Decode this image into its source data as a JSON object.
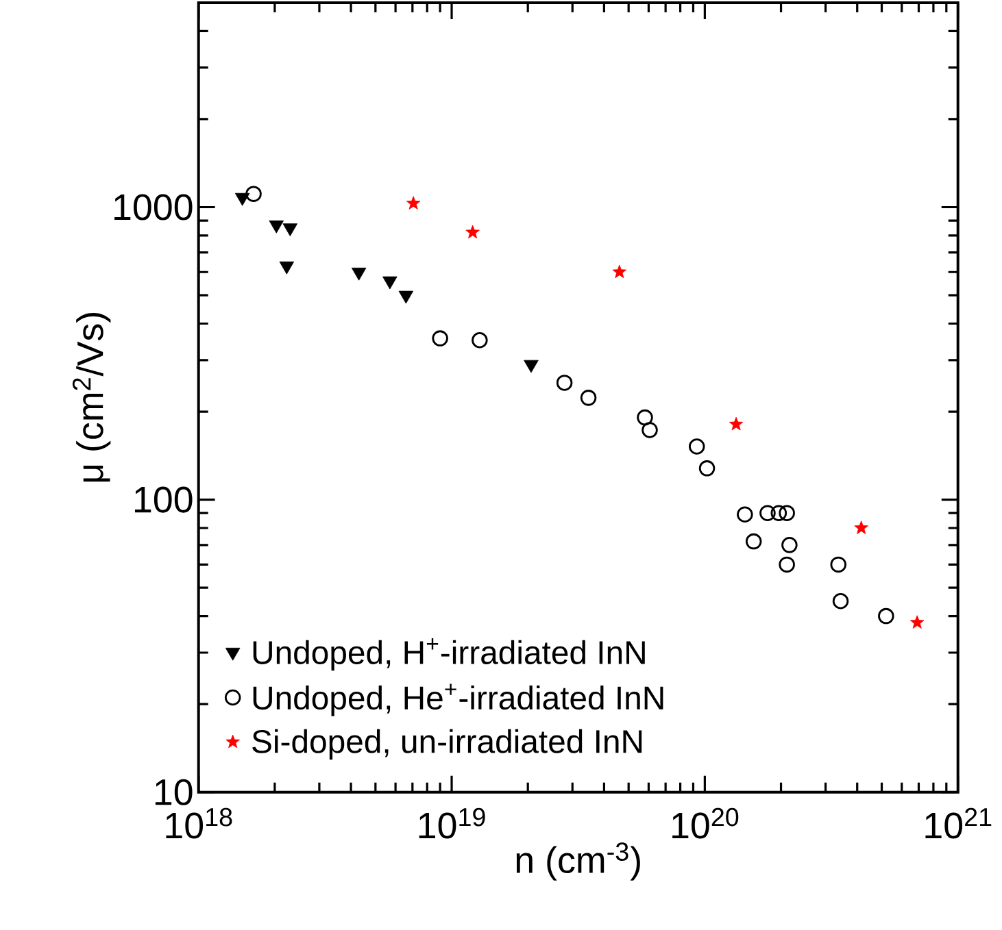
{
  "chart_data": {
    "type": "scatter",
    "xlabel": "n (cm$^{-3}$)",
    "ylabel": "μ (cm$^{2}$/Vs)",
    "log": "xy",
    "legend": "bottom left",
    "grid": false,
    "xlim": [
      1e+18,
      1e+21
    ],
    "ylim": [
      10,
      5000
    ],
    "xticks": [
      {
        "value": 1e+18,
        "label": "10$^{18}$"
      },
      {
        "value": 1e+19,
        "label": "10$^{19}$"
      },
      {
        "value": 1e+20,
        "label": "10$^{20}$"
      },
      {
        "value": 1e+21,
        "label": "10$^{21}$"
      }
    ],
    "yticks": [
      10,
      100,
      1000
    ],
    "series": [
      {
        "name": "Undoped, H$^{+}$-irradiated InN",
        "color": "#000000",
        "marker": "triangle",
        "x": [
          1.49e+18,
          2.03e+18,
          2.3e+18,
          2.23e+18,
          4.3e+18,
          5.7e+18,
          6.6e+18,
          2.06e+19
        ],
        "values": [
          1080,
          870,
          850,
          630,
          600,
          560,
          500,
          290
        ]
      },
      {
        "name": "Undoped, He$^{+}$-irradiated InN",
        "color": "#000000",
        "marker": "circle",
        "x": [
          1.65e+18,
          9e+18,
          1.29e+19,
          2.79e+19,
          3.47e+19,
          5.8e+19,
          6.06e+19,
          9.3e+19,
          1.02e+20,
          1.44e+20,
          1.77e+20,
          1.96e+20,
          2.11e+20,
          1.56e+20,
          2.16e+20,
          2.11e+20,
          3.37e+20,
          3.44e+20,
          5.2e+20
        ],
        "values": [
          1110,
          356,
          351,
          251,
          223,
          191,
          173,
          152,
          128,
          89,
          90,
          90,
          90,
          72,
          70,
          60,
          60,
          45,
          40
        ]
      },
      {
        "name": "Si-doped, un-irradiated InN",
        "color": "#ff0000",
        "marker": "star",
        "x": [
          7.06e+18,
          1.21e+19,
          4.6e+19,
          1.33e+20,
          4.15e+20,
          6.9e+20
        ],
        "values": [
          1030,
          820,
          600,
          181,
          80,
          38
        ]
      }
    ]
  }
}
